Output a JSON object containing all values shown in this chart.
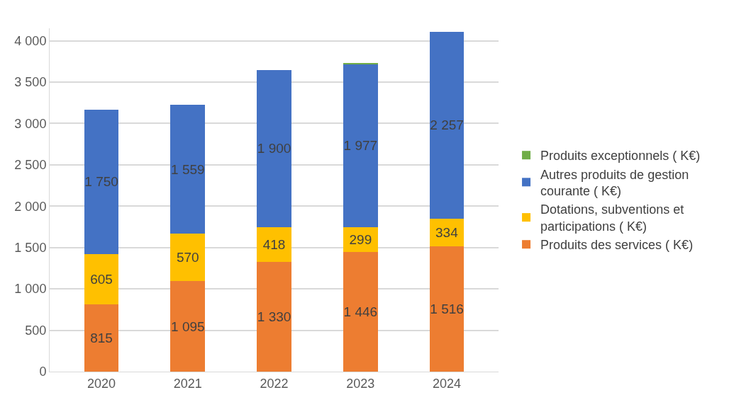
{
  "chart_data": {
    "type": "bar",
    "stacked": true,
    "categories": [
      "2020",
      "2021",
      "2022",
      "2023",
      "2024"
    ],
    "series": [
      {
        "name": "Produits des services ( K€)",
        "color": "#ed7d31",
        "values": [
          815,
          1095,
          1330,
          1446,
          1516
        ],
        "value_labels": [
          "815",
          "1 095",
          "1 330",
          "1 446",
          "1 516"
        ]
      },
      {
        "name": "Dotations, subventions et participations ( K€)",
        "color": "#ffc000",
        "values": [
          605,
          570,
          418,
          299,
          334
        ],
        "value_labels": [
          "605",
          "570",
          "418",
          "299",
          "334"
        ]
      },
      {
        "name": "Autres produits de gestion courante ( K€)",
        "color": "#4472c4",
        "values": [
          1750,
          1559,
          1900,
          1977,
          2257
        ],
        "value_labels": [
          "1 750",
          "1 559",
          "1 900",
          "1 977",
          "2 257"
        ]
      },
      {
        "name": "Produits exceptionnels ( K€)",
        "color": "#70ad47",
        "values": [
          null,
          null,
          null,
          10,
          null
        ]
      }
    ],
    "ylim": [
      0,
      4150
    ],
    "yticks": [
      0,
      {
        "value": 500,
        "label": "500"
      },
      {
        "value": 1000,
        "label": "1 000"
      },
      {
        "value": 1500,
        "label": "1 500"
      },
      {
        "value": 2000,
        "label": "2 000"
      },
      {
        "value": 2500,
        "label": "2 500"
      },
      {
        "value": 3000,
        "label": "3 000"
      },
      {
        "value": 3500,
        "label": "3 500"
      },
      {
        "value": 4000,
        "label": "4 000"
      }
    ],
    "grid": "y",
    "legend": "right"
  }
}
